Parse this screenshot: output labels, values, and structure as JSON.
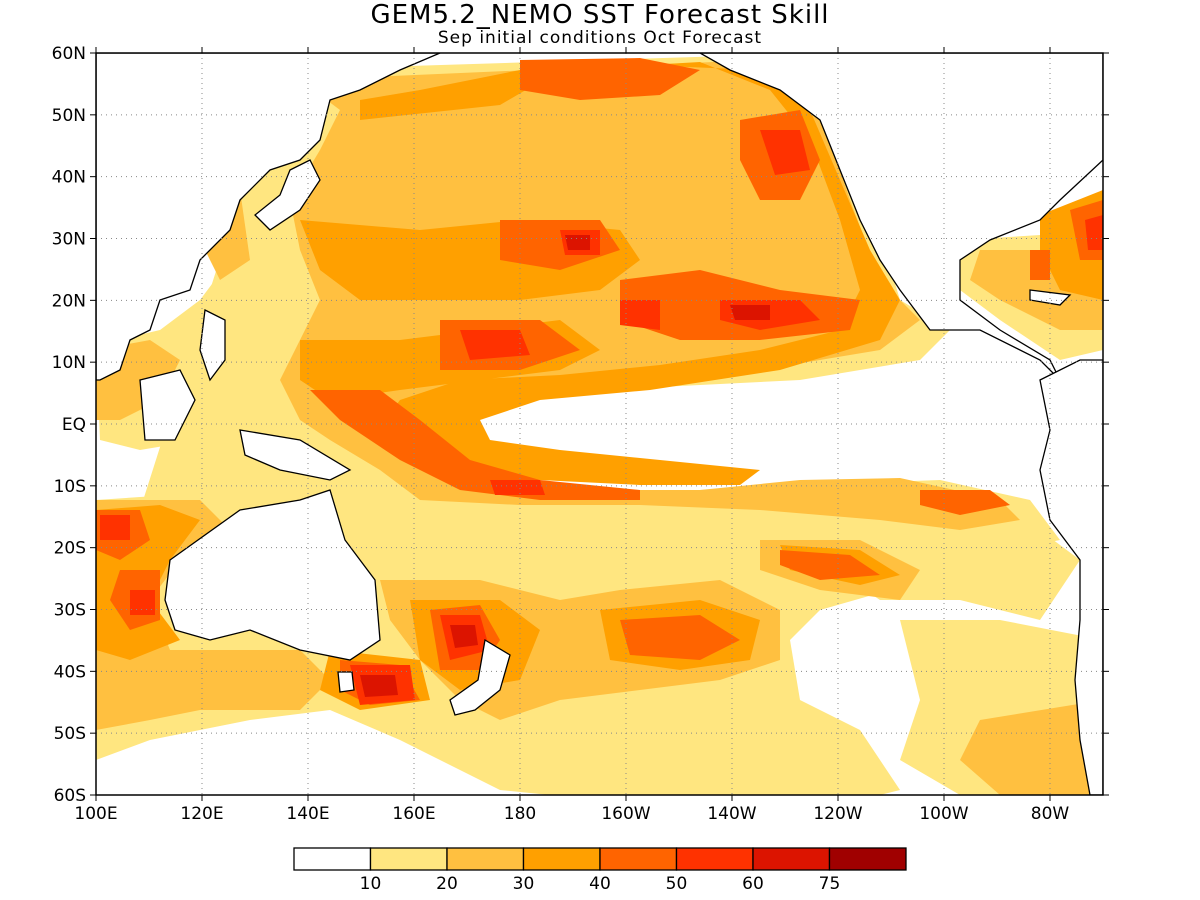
{
  "title": "GEM5.2_NEMO SST Forecast Skill",
  "subtitle": "Sep initial conditions  Oct Forecast",
  "map": {
    "lon_range": [
      100,
      290
    ],
    "lat_range": [
      -60,
      60
    ],
    "lat_ticks": [
      {
        "lat": 60,
        "label": "60N"
      },
      {
        "lat": 50,
        "label": "50N"
      },
      {
        "lat": 40,
        "label": "40N"
      },
      {
        "lat": 30,
        "label": "30N"
      },
      {
        "lat": 20,
        "label": "20N"
      },
      {
        "lat": 10,
        "label": "10N"
      },
      {
        "lat": 0,
        "label": "EQ"
      },
      {
        "lat": -10,
        "label": "10S"
      },
      {
        "lat": -20,
        "label": "20S"
      },
      {
        "lat": -30,
        "label": "30S"
      },
      {
        "lat": -40,
        "label": "40S"
      },
      {
        "lat": -50,
        "label": "50S"
      },
      {
        "lat": -60,
        "label": "60S"
      }
    ],
    "lon_ticks": [
      {
        "lon": 100,
        "label": "100E"
      },
      {
        "lon": 120,
        "label": "120E"
      },
      {
        "lon": 140,
        "label": "140E"
      },
      {
        "lon": 160,
        "label": "160E"
      },
      {
        "lon": 180,
        "label": "180"
      },
      {
        "lon": 200,
        "label": "160W"
      },
      {
        "lon": 220,
        "label": "140W"
      },
      {
        "lon": 240,
        "label": "120W"
      },
      {
        "lon": 260,
        "label": "100W"
      },
      {
        "lon": 280,
        "label": "80W"
      }
    ],
    "grid": "dotted"
  },
  "legend": {
    "colors": [
      "#ffffff",
      "#ffe680",
      "#ffc040",
      "#ffa000",
      "#ff6400",
      "#ff3200",
      "#dc1400",
      "#a00000"
    ],
    "labels": [
      "10",
      "20",
      "30",
      "40",
      "50",
      "60",
      "75"
    ]
  }
}
